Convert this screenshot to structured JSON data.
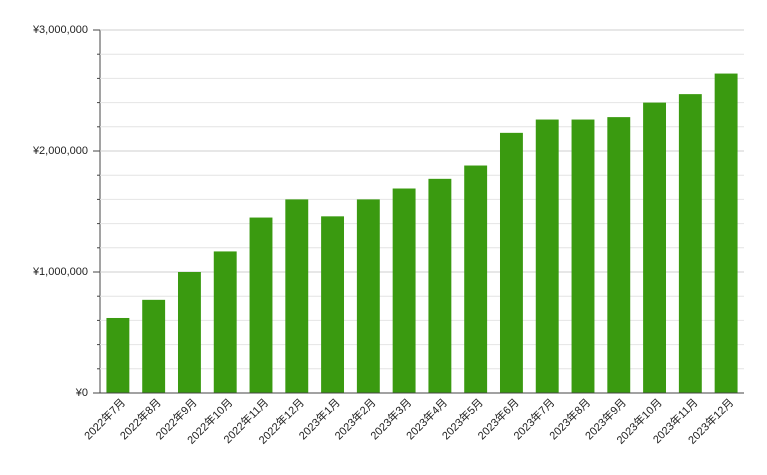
{
  "chart_data": {
    "type": "bar",
    "categories": [
      "2022年7月",
      "2022年8月",
      "2022年9月",
      "2022年10月",
      "2022年11月",
      "2022年12月",
      "2023年1月",
      "2023年2月",
      "2023年3月",
      "2023年4月",
      "2023年5月",
      "2023年6月",
      "2023年7月",
      "2023年8月",
      "2023年9月",
      "2023年10月",
      "2023年11月",
      "2023年12月"
    ],
    "values": [
      620000,
      770000,
      1000000,
      1170000,
      1450000,
      1600000,
      1460000,
      1600000,
      1690000,
      1770000,
      1880000,
      2150000,
      2260000,
      2260000,
      2280000,
      2400000,
      2470000,
      2640000
    ],
    "color": "#3a9a10",
    "ylim": [
      0,
      3000000
    ],
    "yticks": [
      {
        "value": 0,
        "label": "¥0"
      },
      {
        "value": 1000000,
        "label": "¥1,000,000"
      },
      {
        "value": 2000000,
        "label": "¥2,000,000"
      },
      {
        "value": 3000000,
        "label": "¥3,000,000"
      }
    ],
    "minor_yticks": [
      200000,
      400000,
      600000,
      800000,
      1200000,
      1400000,
      1600000,
      1800000,
      2200000,
      2400000,
      2600000,
      2800000
    ],
    "grid": true
  }
}
